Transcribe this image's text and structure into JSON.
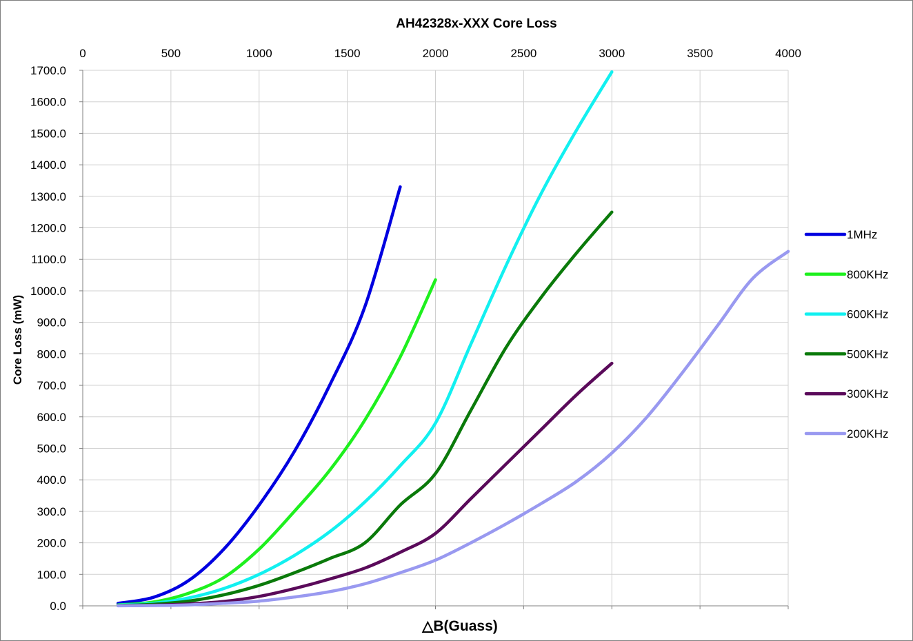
{
  "chart_data": {
    "type": "line",
    "title": "AH42328x-XXX Core Loss",
    "xlabel": "△B(Guass)",
    "ylabel": "Core Loss (mW)",
    "xlim": [
      0,
      4000
    ],
    "ylim": [
      0,
      1700
    ],
    "x_ticks": [
      "0",
      "500",
      "1000",
      "1500",
      "2000",
      "2500",
      "3000",
      "3500",
      "4000"
    ],
    "y_ticks": [
      "0.0",
      "100.0",
      "200.0",
      "300.0",
      "400.0",
      "500.0",
      "600.0",
      "700.0",
      "800.0",
      "900.0",
      "1000.0",
      "1100.0",
      "1200.0",
      "1300.0",
      "1400.0",
      "1500.0",
      "1600.0",
      "1700.0"
    ],
    "grid": true,
    "legend_position": "right",
    "series": [
      {
        "name": "1MHz",
        "color": "#0000e0",
        "x": [
          200,
          400,
          600,
          800,
          1000,
          1200,
          1400,
          1600,
          1800
        ],
        "y": [
          8,
          27,
          80,
          180,
          320,
          490,
          700,
          950,
          1330
        ]
      },
      {
        "name": "800KHz",
        "color": "#1ef01e",
        "x": [
          200,
          400,
          600,
          800,
          1000,
          1200,
          1400,
          1600,
          1800,
          2000
        ],
        "y": [
          3,
          12,
          40,
          90,
          180,
          300,
          430,
          590,
          790,
          1035
        ]
      },
      {
        "name": "600KHz",
        "color": "#12f0f0",
        "x": [
          200,
          400,
          600,
          800,
          1000,
          1200,
          1400,
          1600,
          1800,
          2000,
          2200,
          2400,
          2600,
          2800,
          3000
        ],
        "y": [
          2,
          8,
          25,
          55,
          100,
          160,
          235,
          330,
          445,
          580,
          830,
          1080,
          1310,
          1510,
          1695
        ]
      },
      {
        "name": "500KHz",
        "color": "#0a7a0a",
        "x": [
          200,
          400,
          600,
          800,
          1000,
          1200,
          1400,
          1600,
          1800,
          2000,
          2200,
          2400,
          2600,
          2800,
          3000
        ],
        "y": [
          1,
          5,
          15,
          35,
          65,
          105,
          150,
          200,
          320,
          420,
          620,
          820,
          980,
          1120,
          1250
        ]
      },
      {
        "name": "300KHz",
        "color": "#5a0a5a",
        "x": [
          200,
          400,
          600,
          800,
          1000,
          1200,
          1400,
          1600,
          1800,
          2000,
          2200,
          2400,
          2600,
          2800,
          3000
        ],
        "y": [
          0.5,
          2,
          6,
          14,
          30,
          55,
          85,
          120,
          170,
          230,
          340,
          450,
          560,
          670,
          770
        ]
      },
      {
        "name": "200KHz",
        "color": "#9999f0",
        "x": [
          200,
          400,
          600,
          800,
          1000,
          1200,
          1400,
          1600,
          1800,
          2000,
          2200,
          2400,
          2600,
          2800,
          3000,
          3200,
          3400,
          3600,
          3800,
          4000
        ],
        "y": [
          0.3,
          1,
          3,
          8,
          15,
          28,
          45,
          70,
          105,
          145,
          200,
          260,
          325,
          395,
          485,
          600,
          740,
          890,
          1040,
          1125
        ]
      }
    ]
  }
}
